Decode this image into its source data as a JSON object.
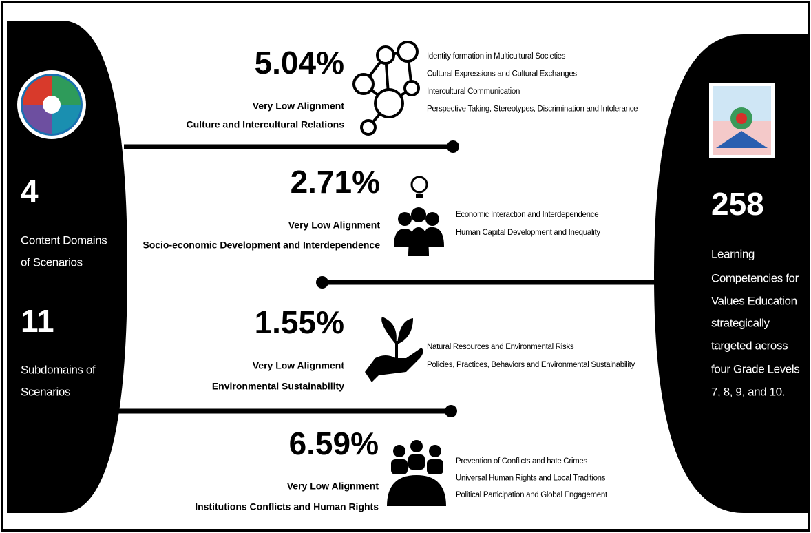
{
  "left": {
    "domains_count": "4",
    "domains_label": [
      "Content Domains",
      "of Scenarios"
    ],
    "subdomains_count": "11",
    "subdomains_label": [
      "Subdomains of",
      "Scenarios"
    ]
  },
  "right": {
    "count": "258",
    "label": [
      "Learning",
      "Competencies for",
      "Values Education",
      "strategically",
      "targeted across",
      "four Grade Levels",
      "7, 8, 9, and 10."
    ]
  },
  "sections": [
    {
      "percent": "5.04%",
      "alignment": "Very Low Alignment",
      "domain": "Culture and Intercultural Relations",
      "subdomains": [
        "Identity formation in Multicultural Societies",
        "Cultural Expressions and Cultural Exchanges",
        "Intercultural Communication",
        "Perspective Taking, Stereotypes, Discrimination and Intolerance"
      ]
    },
    {
      "percent": "2.71%",
      "alignment": "Very Low Alignment",
      "domain": "Socio-economic Development and Interdependence",
      "subdomains": [
        "Economic Interaction and Interdependence",
        "Human Capital Development and Inequality"
      ]
    },
    {
      "percent": "1.55%",
      "alignment": "Very Low Alignment",
      "domain": "Environmental Sustainability",
      "subdomains": [
        "Natural Resources and Environmental Risks",
        "Policies, Practices, Behaviors and Environmental Sustainability"
      ]
    },
    {
      "percent": "6.59%",
      "alignment": "Very Low Alignment",
      "domain": "Institutions Conflicts and Human Rights",
      "subdomains": [
        "Prevention of Conflicts and hate Crimes",
        "Universal Human Rights and Local Traditions",
        "Political Participation and Global Engagement"
      ]
    }
  ]
}
